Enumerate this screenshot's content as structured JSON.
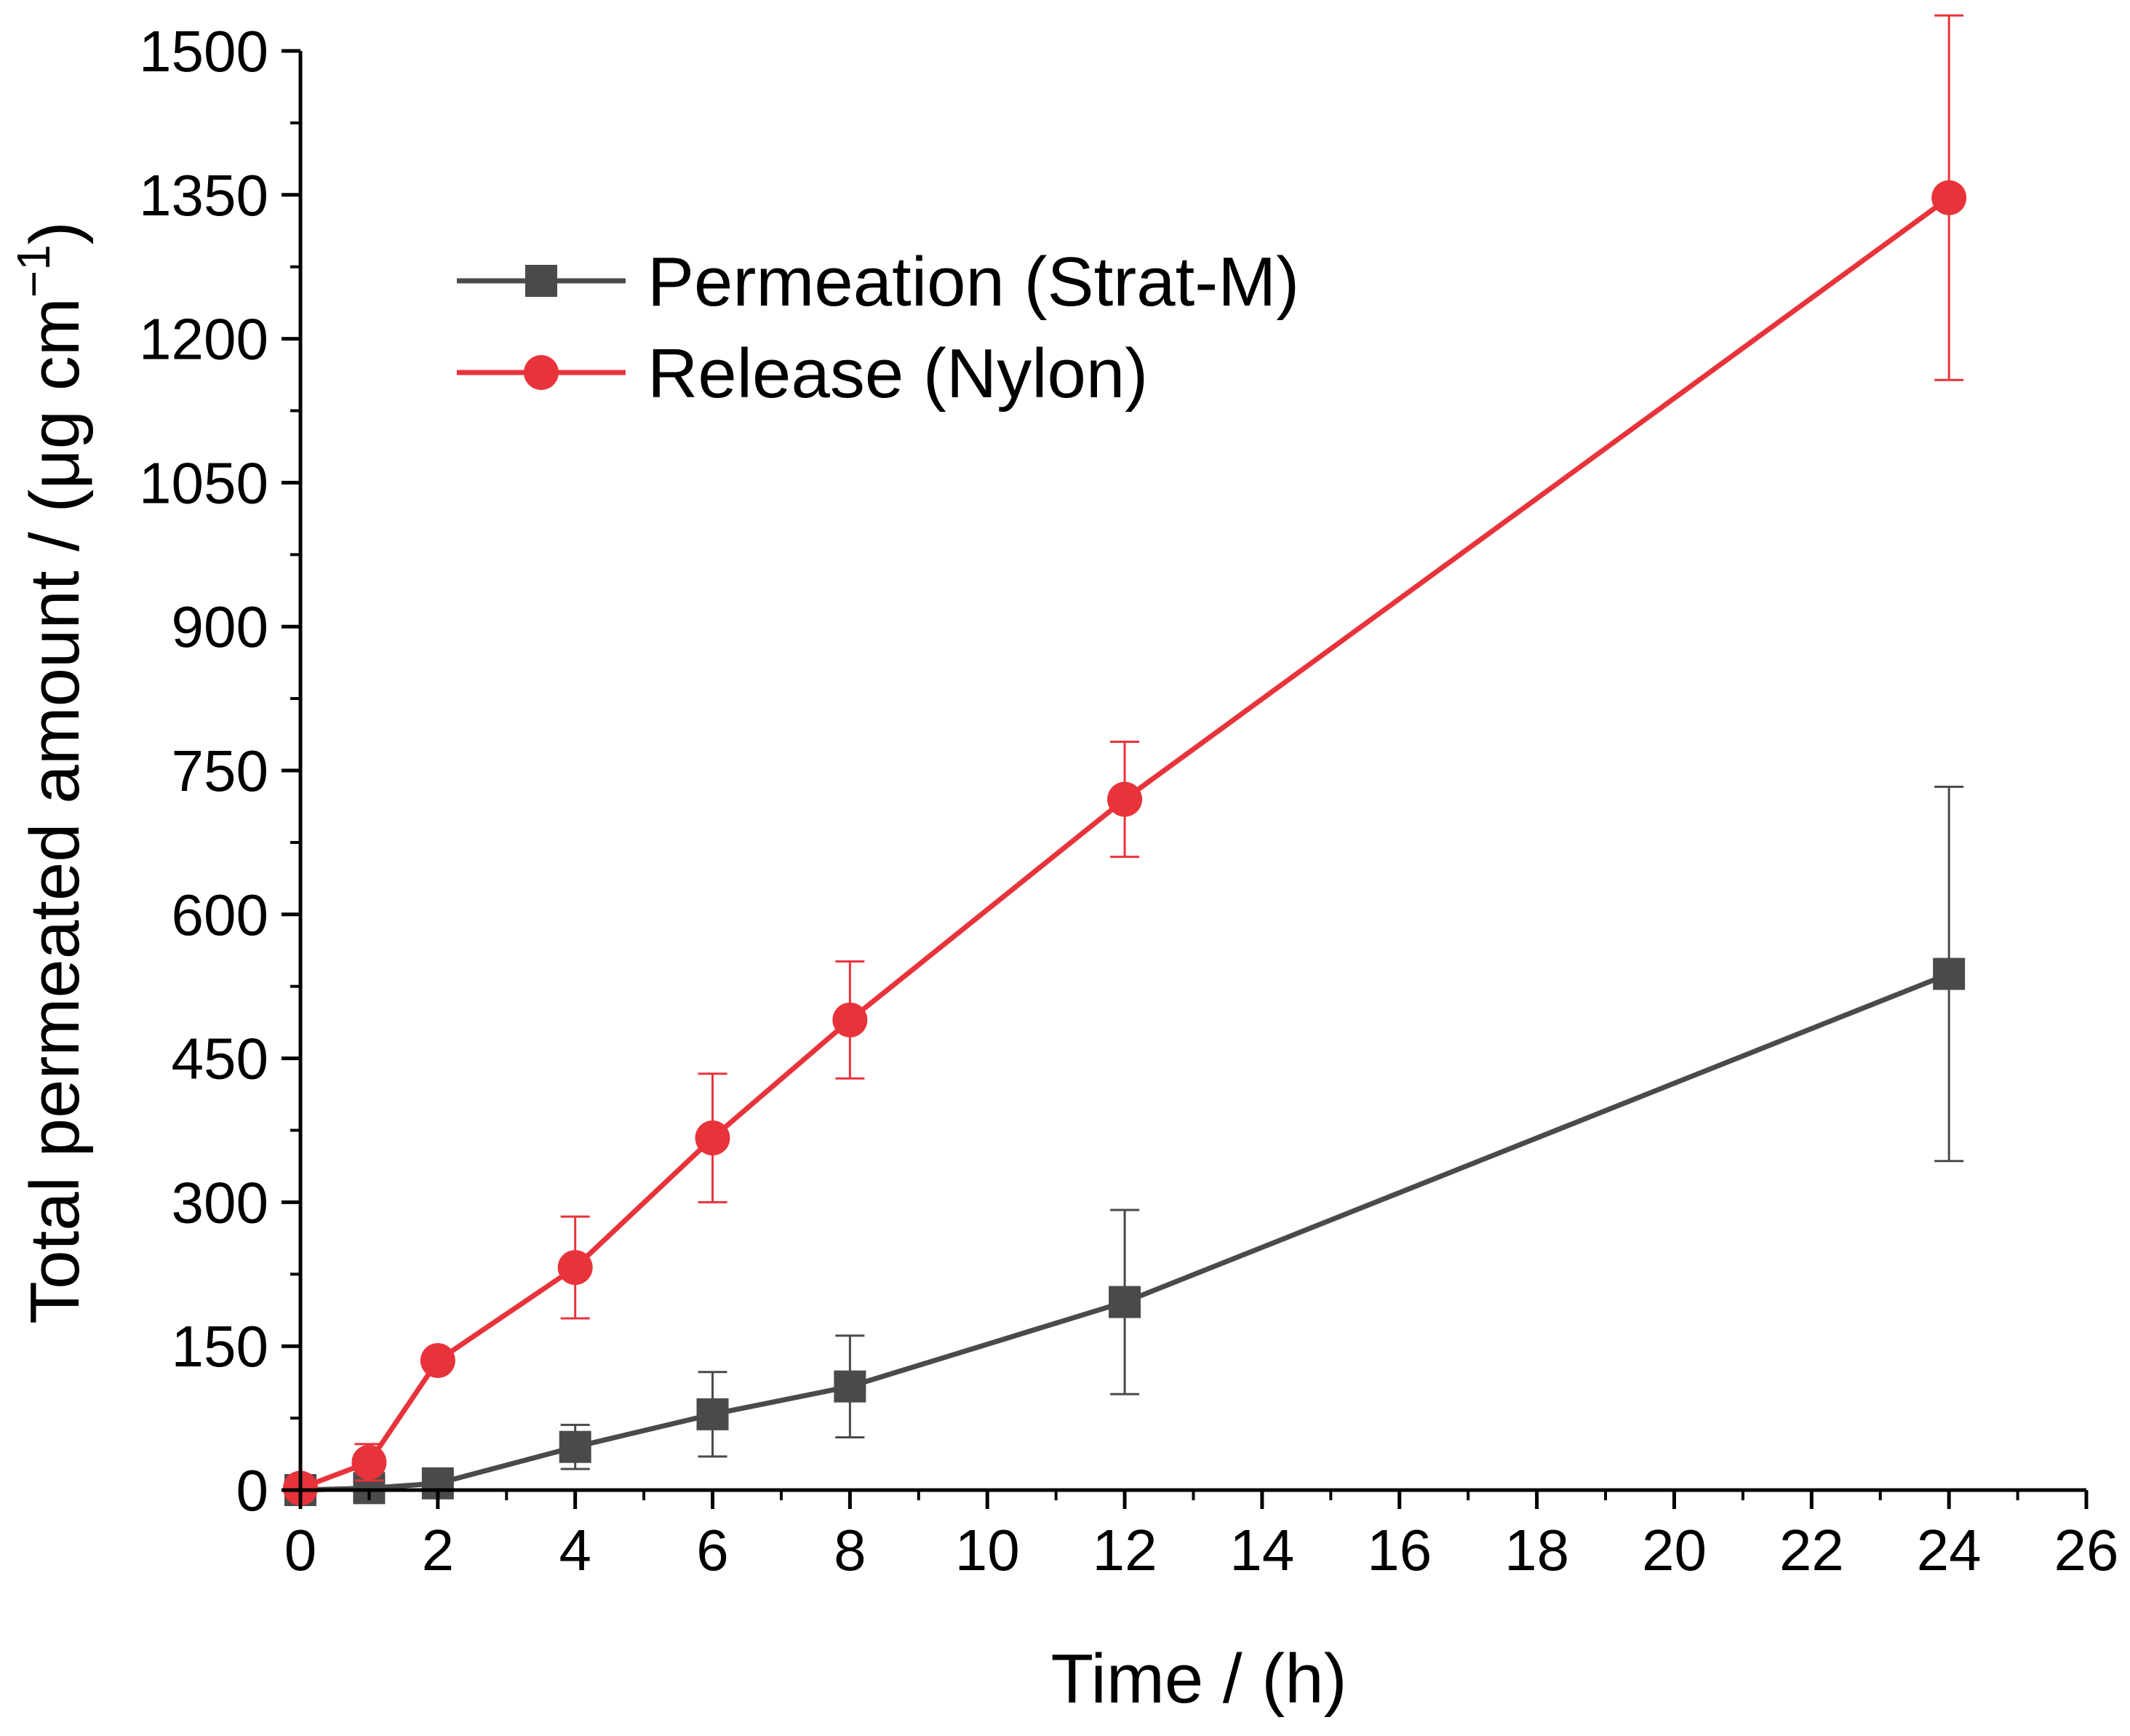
{
  "chart_data": {
    "type": "line",
    "title": "",
    "xlabel": "Time / (h)",
    "ylabel": {
      "main": "Total permeated amount / (μg cm",
      "superscript": "−1",
      "close": ")"
    },
    "xlim": [
      0,
      26
    ],
    "ylim": [
      0,
      1500
    ],
    "xticks": [
      0,
      2,
      4,
      6,
      8,
      10,
      12,
      14,
      16,
      18,
      20,
      22,
      24,
      26
    ],
    "xtick_labels": [
      "0",
      "2",
      "4",
      "6",
      "8",
      "10",
      "12",
      "14",
      "16",
      "18",
      "20",
      "22",
      "24",
      "26"
    ],
    "yticks": [
      0,
      150,
      300,
      450,
      600,
      750,
      900,
      1050,
      1200,
      1350,
      1500
    ],
    "ytick_labels": [
      "0",
      "150",
      "300",
      "450",
      "600",
      "750",
      "900",
      "1050",
      "1200",
      "1350",
      "1500"
    ],
    "legend_position": "top-left",
    "grid": false,
    "series": [
      {
        "name": "Permeation (Strat-M)",
        "color": "#4a4a4a",
        "marker": "square",
        "x": [
          0,
          1,
          2,
          4,
          6,
          8,
          12,
          24
        ],
        "y": [
          0,
          2,
          7,
          45,
          79,
          108,
          196,
          538
        ],
        "err": [
          2,
          3,
          5,
          23,
          44,
          53,
          96,
          195
        ]
      },
      {
        "name": "Release (Nylon)",
        "color": "#e8333b",
        "marker": "circle",
        "x": [
          0,
          1,
          2,
          4,
          6,
          8,
          12,
          24
        ],
        "y": [
          2,
          29,
          135,
          232,
          367,
          490,
          720,
          1347
        ],
        "err": [
          3,
          19,
          6,
          53,
          67,
          61,
          60,
          190
        ]
      }
    ]
  }
}
